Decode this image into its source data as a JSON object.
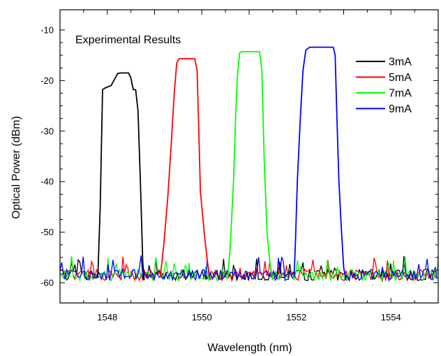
{
  "chart_data": {
    "type": "line",
    "title": "",
    "annotation": "Experimental Results",
    "xlabel": "Wavelength (nm)",
    "ylabel": "Optical Power (dBm)",
    "xlim": [
      1547,
      1555
    ],
    "ylim": [
      -64,
      -6
    ],
    "xticks": [
      1548,
      1550,
      1552,
      1554
    ],
    "yticks": [
      -60,
      -50,
      -40,
      -30,
      -20,
      -10
    ],
    "legend_position": "top-right",
    "grid": false,
    "series": [
      {
        "name": "3mA",
        "color": "#000000",
        "peak_dbm": -18.5,
        "points": [
          [
            1547.8,
            -59
          ],
          [
            1547.85,
            -45
          ],
          [
            1547.9,
            -21.8
          ],
          [
            1547.95,
            -21.5
          ],
          [
            1548.0,
            -21.3
          ],
          [
            1548.08,
            -21.0
          ],
          [
            1548.15,
            -19.8
          ],
          [
            1548.22,
            -18.6
          ],
          [
            1548.3,
            -18.5
          ],
          [
            1548.45,
            -18.5
          ],
          [
            1548.5,
            -19.5
          ],
          [
            1548.55,
            -21.8
          ],
          [
            1548.6,
            -21.8
          ],
          [
            1548.65,
            -26
          ],
          [
            1548.7,
            -40
          ],
          [
            1548.75,
            -56
          ],
          [
            1548.78,
            -59.5
          ]
        ]
      },
      {
        "name": "5mA",
        "color": "#ff0000",
        "peak_dbm": -15.7,
        "points": [
          [
            1549.12,
            -59
          ],
          [
            1549.2,
            -52
          ],
          [
            1549.28,
            -43
          ],
          [
            1549.35,
            -33
          ],
          [
            1549.42,
            -22
          ],
          [
            1549.47,
            -16.5
          ],
          [
            1549.52,
            -15.7
          ],
          [
            1549.85,
            -15.7
          ],
          [
            1549.9,
            -18
          ],
          [
            1549.93,
            -28
          ],
          [
            1549.97,
            -42
          ],
          [
            1550.05,
            -50
          ],
          [
            1550.12,
            -56
          ],
          [
            1550.18,
            -59.5
          ]
        ]
      },
      {
        "name": "7mA",
        "color": "#00ff00",
        "peak_dbm": -14.3,
        "points": [
          [
            1550.55,
            -59
          ],
          [
            1550.6,
            -53
          ],
          [
            1550.67,
            -40
          ],
          [
            1550.72,
            -26
          ],
          [
            1550.75,
            -19.5
          ],
          [
            1550.8,
            -14.5
          ],
          [
            1550.85,
            -14.3
          ],
          [
            1551.22,
            -14.3
          ],
          [
            1551.27,
            -18
          ],
          [
            1551.32,
            -36
          ],
          [
            1551.38,
            -50
          ],
          [
            1551.44,
            -56
          ],
          [
            1551.5,
            -59.5
          ]
        ]
      },
      {
        "name": "9mA",
        "color": "#0000ff",
        "peak_dbm": -13.4,
        "points": [
          [
            1551.95,
            -59
          ],
          [
            1551.98,
            -52
          ],
          [
            1552.02,
            -40
          ],
          [
            1552.08,
            -28
          ],
          [
            1552.14,
            -18
          ],
          [
            1552.2,
            -14
          ],
          [
            1552.28,
            -13.4
          ],
          [
            1552.78,
            -13.4
          ],
          [
            1552.82,
            -15
          ],
          [
            1552.86,
            -28
          ],
          [
            1552.9,
            -40
          ],
          [
            1552.95,
            -49
          ],
          [
            1553.0,
            -57
          ],
          [
            1553.05,
            -59.5
          ]
        ]
      }
    ]
  }
}
